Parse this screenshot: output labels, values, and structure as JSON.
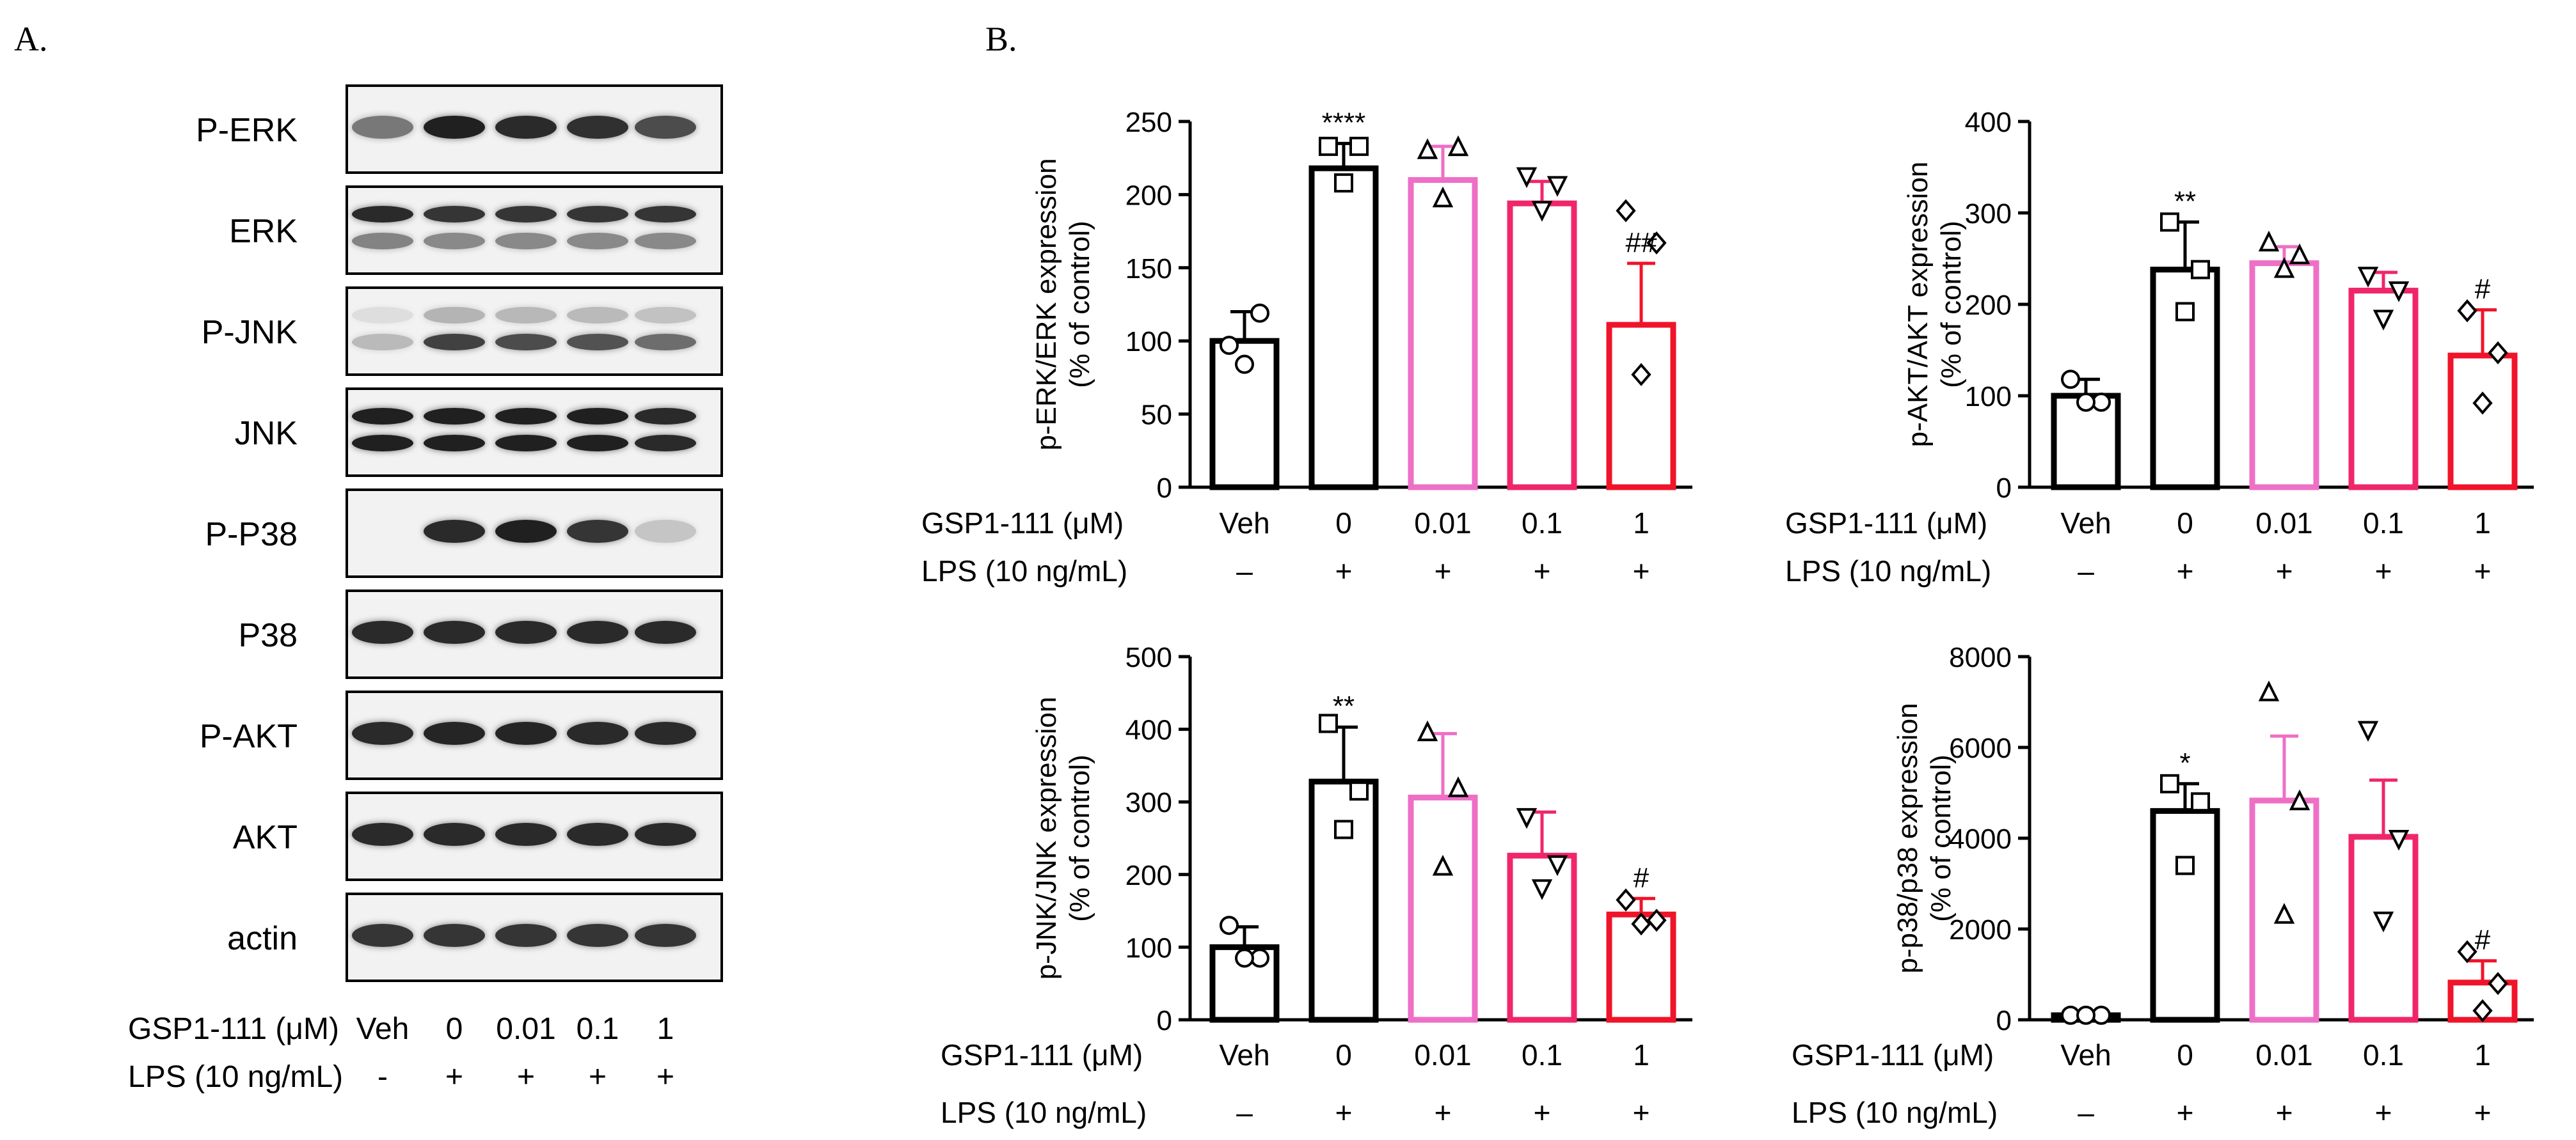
{
  "panel_a_label": "A.",
  "panel_b_label": "B.",
  "western_blot": {
    "rows": [
      "P-ERK",
      "ERK",
      "P-JNK",
      "JNK",
      "P-P38",
      "P38",
      "P-AKT",
      "AKT",
      "actin"
    ],
    "band_intensity": [
      [
        0.55,
        0.95,
        0.9,
        0.88,
        0.75
      ],
      [
        0.9,
        0.85,
        0.85,
        0.85,
        0.85
      ],
      [
        0.25,
        0.8,
        0.75,
        0.72,
        0.6
      ],
      [
        0.95,
        0.95,
        0.95,
        0.95,
        0.9
      ],
      [
        0.0,
        0.9,
        0.95,
        0.85,
        0.2
      ],
      [
        0.9,
        0.9,
        0.9,
        0.9,
        0.9
      ],
      [
        0.9,
        0.92,
        0.92,
        0.9,
        0.9
      ],
      [
        0.9,
        0.9,
        0.9,
        0.9,
        0.9
      ],
      [
        0.85,
        0.85,
        0.85,
        0.85,
        0.85
      ]
    ],
    "treatment_label": "GSP1-111 (μM)",
    "lps_label": "LPS (10 ng/mL)",
    "doses": [
      "Veh",
      "0",
      "0.01",
      "0.1",
      "1"
    ],
    "lps": [
      "-",
      "+",
      "+",
      "+",
      "+"
    ]
  },
  "colors": {
    "black": "#000000",
    "pink": "#ee6fc6",
    "rose": "#f0266a",
    "red": "#f0142a"
  },
  "chart_data": [
    {
      "type": "bar",
      "ylabel": "p-ERK/ERK expression",
      "ylabel2": "(% of control)",
      "ylim": [
        0,
        250
      ],
      "yticks": [
        0,
        50,
        100,
        150,
        200,
        250
      ],
      "categories": [
        "Veh",
        "0",
        "0.01",
        "0.1",
        "1"
      ],
      "values": [
        100,
        218,
        210,
        194,
        111
      ],
      "errors": [
        20,
        17,
        23,
        15,
        42
      ],
      "points": [
        [
          97,
          119,
          84
        ],
        [
          233,
          233,
          208
        ],
        [
          230,
          232,
          197
        ],
        [
          213,
          207,
          190
        ],
        [
          189,
          167,
          77
        ]
      ],
      "markers": [
        "circle",
        "square",
        "triangle",
        "triangle-down",
        "diamond"
      ],
      "colors": [
        "#000000",
        "#000000",
        "#ee6fc6",
        "#f0266a",
        "#f0142a"
      ],
      "annotations": [
        "",
        "****",
        "",
        "",
        "##"
      ],
      "row1_label": "GSP1-111 (μM)",
      "row2_label": "LPS (10 ng/mL)",
      "lps": [
        "–",
        "+",
        "+",
        "+",
        "+"
      ]
    },
    {
      "type": "bar",
      "ylabel": "p-AKT/AKT expression",
      "ylabel2": "(% of control)",
      "ylim": [
        0,
        400
      ],
      "yticks": [
        0,
        100,
        200,
        300,
        400
      ],
      "categories": [
        "Veh",
        "0",
        "0.01",
        "0.1",
        "1"
      ],
      "values": [
        100,
        238,
        245,
        215,
        144
      ],
      "errors": [
        18,
        52,
        18,
        20,
        50
      ],
      "points": [
        [
          118,
          93,
          93
        ],
        [
          290,
          238,
          192
        ],
        [
          267,
          253,
          238
        ],
        [
          232,
          216,
          185
        ],
        [
          193,
          147,
          92
        ]
      ],
      "markers": [
        "circle",
        "square",
        "triangle",
        "triangle-down",
        "diamond"
      ],
      "colors": [
        "#000000",
        "#000000",
        "#ee6fc6",
        "#f0266a",
        "#f0142a"
      ],
      "annotations": [
        "",
        "**",
        "",
        "",
        "#"
      ],
      "row1_label": "GSP1-111 (μM)",
      "row2_label": "LPS (10 ng/mL)",
      "lps": [
        "–",
        "+",
        "+",
        "+",
        "+"
      ]
    },
    {
      "type": "bar",
      "ylabel": "p-JNK/JNK expression",
      "ylabel2": "(% of control)",
      "ylim": [
        0,
        500
      ],
      "yticks": [
        0,
        100,
        200,
        300,
        400,
        500
      ],
      "categories": [
        "Veh",
        "0",
        "0.01",
        "0.1",
        "1"
      ],
      "values": [
        100,
        328,
        306,
        226,
        145
      ],
      "errors": [
        28,
        75,
        88,
        60,
        22
      ],
      "points": [
        [
          130,
          85,
          85
        ],
        [
          408,
          315,
          262
        ],
        [
          395,
          318,
          210
        ],
        [
          280,
          215,
          182
        ],
        [
          165,
          137,
          132
        ]
      ],
      "markers": [
        "circle",
        "square",
        "triangle",
        "triangle-down",
        "diamond"
      ],
      "colors": [
        "#000000",
        "#000000",
        "#ee6fc6",
        "#f0266a",
        "#f0142a"
      ],
      "annotations": [
        "",
        "**",
        "",
        "",
        "#"
      ],
      "row1_label": "GSP1-111 (μM)",
      "row2_label": "LPS (10 ng/mL)",
      "lps": [
        "–",
        "+",
        "+",
        "+",
        "+"
      ]
    },
    {
      "type": "bar",
      "ylabel": "p-p38/p38 expression",
      "ylabel2": "(% of control)",
      "ylim": [
        0,
        8000
      ],
      "yticks": [
        0,
        2000,
        4000,
        6000,
        8000
      ],
      "categories": [
        "Veh",
        "0",
        "0.01",
        "0.1",
        "1"
      ],
      "values": [
        100,
        4600,
        4830,
        4030,
        820
      ],
      "errors": [
        0,
        600,
        1420,
        1250,
        480
      ],
      "points": [
        [
          100,
          100,
          100
        ],
        [
          5200,
          4800,
          3400
        ],
        [
          7200,
          4800,
          2300
        ],
        [
          6400,
          4000,
          2200
        ],
        [
          1500,
          800,
          200
        ]
      ],
      "markers": [
        "circle",
        "square",
        "triangle",
        "triangle-down",
        "diamond"
      ],
      "colors": [
        "#000000",
        "#000000",
        "#ee6fc6",
        "#f0266a",
        "#f0142a"
      ],
      "annotations": [
        "",
        "*",
        "",
        "",
        "#"
      ],
      "row1_label": "GSP1-111 (μM)",
      "row2_label": "LPS (10 ng/mL)",
      "lps": [
        "–",
        "+",
        "+",
        "+",
        "+"
      ]
    }
  ]
}
